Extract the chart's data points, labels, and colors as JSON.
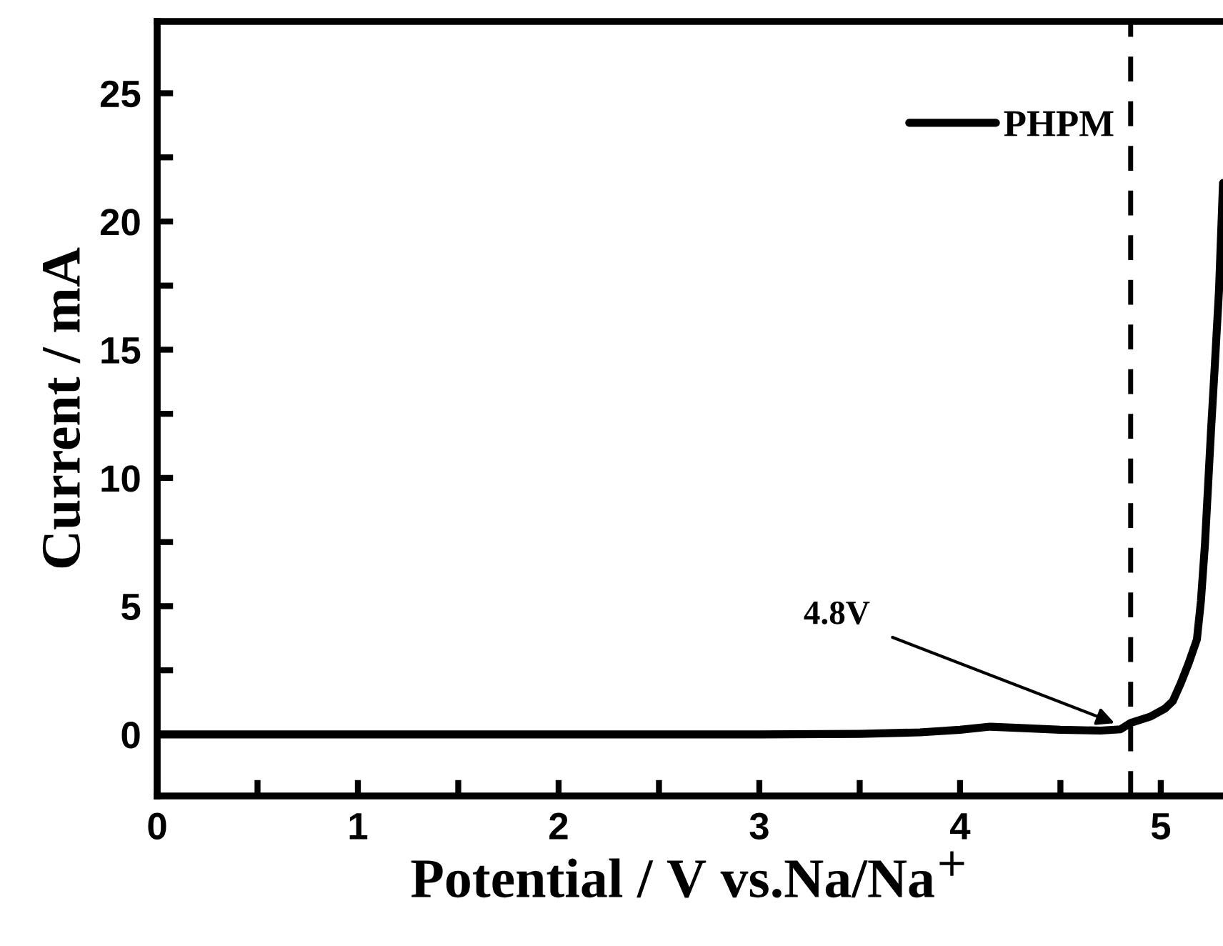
{
  "chart_data": {
    "type": "line",
    "xlabel": "Potential / V vs.Na/Na$^{+}$",
    "ylabel": "Current / mA",
    "xlim": [
      0,
      5.31
    ],
    "ylim": [
      -2.4,
      27.8
    ],
    "xticks": [
      0,
      {
        "value": 0.5,
        "label": null
      },
      1,
      {
        "value": 1.5,
        "label": null
      },
      2,
      {
        "value": 2.5,
        "label": null
      },
      3,
      {
        "value": 3.5,
        "label": null
      },
      4,
      {
        "value": 4.5,
        "label": null
      },
      5
    ],
    "yticks": [
      0,
      {
        "value": 2.5,
        "label": null
      },
      5,
      {
        "value": 7.5,
        "label": null
      },
      10,
      {
        "value": 12.5,
        "label": null
      },
      15,
      {
        "value": 17.5,
        "label": null
      },
      20,
      {
        "value": 22.5,
        "label": null
      },
      25
    ],
    "series": [
      {
        "name": "PHPM",
        "color": "#000000",
        "x": [
          0,
          1,
          2,
          3,
          3.5,
          3.8,
          4.0,
          4.15,
          4.3,
          4.5,
          4.7,
          4.8,
          4.85,
          4.95,
          5.02,
          5.06,
          5.1,
          5.14,
          5.18,
          5.2,
          5.22,
          5.25,
          5.27,
          5.29,
          5.31
        ],
        "values": [
          0,
          0,
          0,
          0,
          0.02,
          0.08,
          0.18,
          0.3,
          0.25,
          0.18,
          0.15,
          0.2,
          0.45,
          0.7,
          1.0,
          1.3,
          2.0,
          2.8,
          3.7,
          5.2,
          7.4,
          11.8,
          14.5,
          17.3,
          21.5
        ]
      }
    ],
    "ref_lines": [
      {
        "axis": "x",
        "value": 4.85,
        "color": "#000000",
        "line_style": "dashed"
      }
    ],
    "annotations": [
      {
        "text": "4.8V",
        "x": 4.77,
        "y": 0.44
      }
    ],
    "legend": "top right",
    "grid": false,
    "marker": "none",
    "line_style": "solid"
  }
}
